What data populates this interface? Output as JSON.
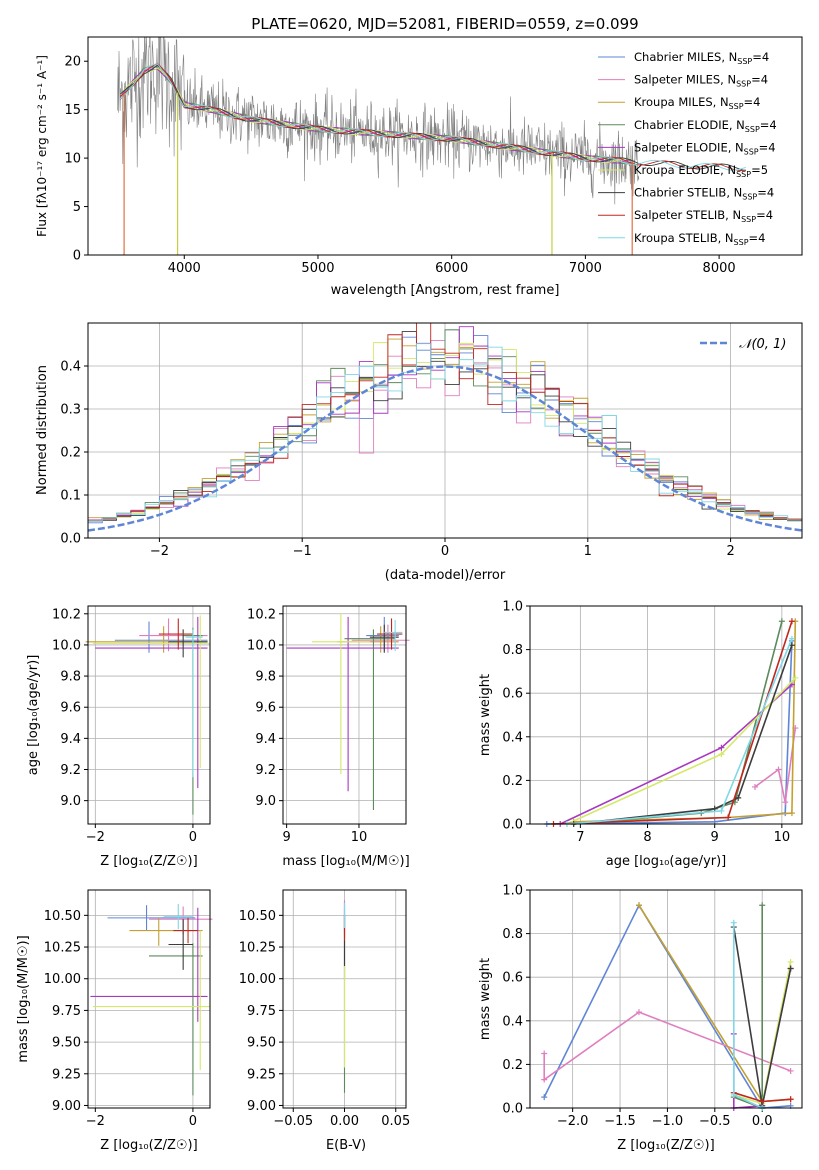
{
  "figure_title": "PLATE=0620, MJD=52081, FIBERID=0559, z=0.099",
  "legend_entries": [
    {
      "label": "Chabrier MILES, N",
      "sub": "SSP",
      "tail": "=4",
      "color": "#5f86d6"
    },
    {
      "label": "Salpeter MILES, N",
      "sub": "SSP",
      "tail": "=4",
      "color": "#e07fbf"
    },
    {
      "label": "Kroupa MILES, N",
      "sub": "SSP",
      "tail": "=4",
      "color": "#c4a032"
    },
    {
      "label": "Chabrier ELODIE, N",
      "sub": "SSP",
      "tail": "=4",
      "color": "#5c8a5c"
    },
    {
      "label": "Salpeter ELODIE, N",
      "sub": "SSP",
      "tail": "=4",
      "color": "#a838c0"
    },
    {
      "label": "Kroupa ELODIE, N",
      "sub": "SSP",
      "tail": "=5",
      "color": "#d4e86a"
    },
    {
      "label": "Chabrier STELIB, N",
      "sub": "SSP",
      "tail": "=4",
      "color": "#3d3d3d"
    },
    {
      "label": "Salpeter STELIB, N",
      "sub": "SSP",
      "tail": "=4",
      "color": "#c0281e"
    },
    {
      "label": "Kroupa STELIB, N",
      "sub": "SSP",
      "tail": "=4",
      "color": "#7fd8e6"
    }
  ],
  "chart_data": [
    {
      "id": "spectrum",
      "type": "line",
      "xlabel": "wavelength [Angstrom, rest frame]",
      "ylabel": "Flux [f",
      "ylabel_full": "Flux [fλ10⁻¹⁷ erg cm⁻² s⁻¹ A⁻¹]",
      "xlim": [
        3280,
        8620
      ],
      "ylim": [
        0,
        22.5
      ],
      "xticks": [
        "4000",
        "5000",
        "6000",
        "7000",
        "8000"
      ],
      "yticks": [
        "0",
        "5",
        "10",
        "15",
        "20"
      ],
      "grid": false,
      "legend_position": "upper-right",
      "data_color": "#808080",
      "continuum": {
        "x": [
          3500,
          3600,
          3700,
          3800,
          3900,
          4000,
          4200,
          4500,
          5000,
          5500,
          6000,
          6500,
          7000,
          7400,
          7800,
          8200
        ],
        "y": [
          16,
          17.5,
          19,
          19.5,
          18,
          15.5,
          15,
          14,
          13,
          12.5,
          12,
          11,
          10,
          9.6,
          9.2,
          9.0
        ]
      }
    },
    {
      "id": "residuals",
      "type": "step",
      "xlabel": "(data-model)/error",
      "ylabel": "Normed distribution",
      "xlim": [
        -2.5,
        2.5
      ],
      "ylim": [
        0,
        0.5
      ],
      "xticks": [
        "−2",
        "−1",
        "0",
        "1",
        "2"
      ],
      "yticks": [
        "0.0",
        "0.1",
        "0.2",
        "0.3",
        "0.4"
      ],
      "grid": true,
      "legend": "𝒩(0, 1)",
      "legend_position": "upper-right",
      "gaussian_color": "#5f86d6"
    },
    {
      "id": "age_vs_Z",
      "type": "errorbar",
      "xlabel": "Z [log₁₀(Z/Z☉)]",
      "ylabel": "age  [log₁₀(age/yr)]",
      "xlim": [
        -2.15,
        0.35
      ],
      "ylim": [
        8.85,
        10.25
      ],
      "xticks": [
        "−2",
        "0"
      ],
      "yticks": [
        "9.0",
        "9.2",
        "9.4",
        "9.6",
        "9.8",
        "10.0",
        "10.2"
      ],
      "grid": true
    },
    {
      "id": "age_vs_mass",
      "type": "errorbar",
      "xlabel": "mass [log₁₀(M/M☉)]",
      "xlim": [
        8.95,
        10.65
      ],
      "ylim": [
        8.85,
        10.25
      ],
      "xticks": [
        "9",
        "10"
      ],
      "yticks": [
        "9.0",
        "9.2",
        "9.4",
        "9.6",
        "9.8",
        "10.0",
        "10.2"
      ],
      "grid": true
    },
    {
      "id": "weight_vs_age",
      "type": "line",
      "xlabel": "age  [log₁₀(age/yr)]",
      "ylabel": "mass weight",
      "xlim": [
        6.25,
        10.3
      ],
      "ylim": [
        0,
        1.0
      ],
      "xticks": [
        "7",
        "8",
        "9",
        "10"
      ],
      "yticks": [
        "0.0",
        "0.2",
        "0.4",
        "0.6",
        "0.8",
        "1.0"
      ],
      "grid": true
    },
    {
      "id": "mass_vs_Z",
      "type": "errorbar",
      "xlabel": "Z [log₁₀(Z/Z☉)]",
      "ylabel": "mass [log₁₀(M/M☉)]",
      "xlim": [
        -2.15,
        0.35
      ],
      "ylim": [
        8.98,
        10.7
      ],
      "xticks": [
        "−2",
        "0"
      ],
      "yticks": [
        "9.00",
        "9.25",
        "9.50",
        "9.75",
        "10.00",
        "10.25",
        "10.50"
      ],
      "grid": true
    },
    {
      "id": "mass_vs_EBV",
      "type": "errorbar",
      "xlabel": "E(B-V)",
      "xlim": [
        -0.06,
        0.06
      ],
      "ylim": [
        8.98,
        10.7
      ],
      "xticks": [
        "−0.05",
        "0.00",
        "0.05"
      ],
      "yticks": [
        "9.00",
        "9.25",
        "9.50",
        "9.75",
        "10.00",
        "10.25",
        "10.50"
      ],
      "grid": true
    },
    {
      "id": "weight_vs_Z",
      "type": "line",
      "xlabel": "Z [log₁₀(Z/Z☉)]",
      "ylabel": "mass weight",
      "xlim": [
        -2.45,
        0.42
      ],
      "ylim": [
        0,
        1.0
      ],
      "xticks": [
        "−2.0",
        "−1.5",
        "−1.0",
        "−0.5",
        "0.0"
      ],
      "yticks": [
        "0.0",
        "0.2",
        "0.4",
        "0.6",
        "0.8",
        "1.0"
      ],
      "grid": true
    }
  ]
}
